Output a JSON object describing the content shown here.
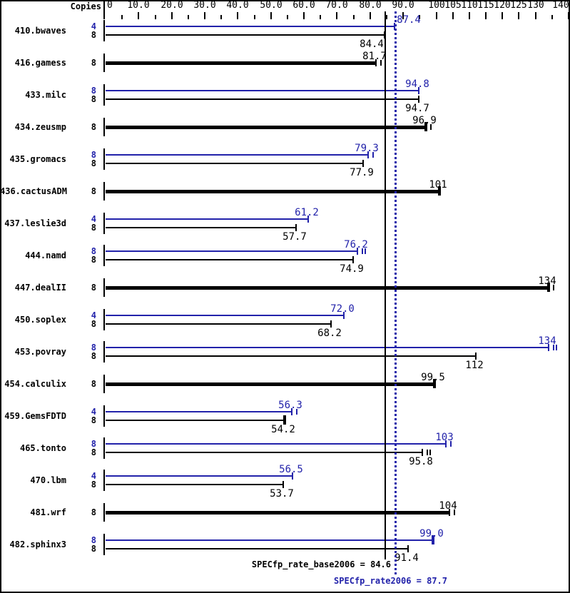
{
  "chart_data": {
    "type": "bar",
    "orientation": "horizontal",
    "copies_label": "Copies",
    "xlim": [
      0,
      140
    ],
    "grid": false,
    "colors": {
      "peak": "#2222aa",
      "base": "#000000",
      "background": "#ffffff"
    },
    "axis_ticks": [
      {
        "value": 0,
        "label": "0"
      },
      {
        "value": 5
      },
      {
        "value": 10,
        "label": "10.0"
      },
      {
        "value": 15
      },
      {
        "value": 20,
        "label": "20.0"
      },
      {
        "value": 25
      },
      {
        "value": 30,
        "label": "30.0"
      },
      {
        "value": 35
      },
      {
        "value": 40,
        "label": "40.0"
      },
      {
        "value": 45
      },
      {
        "value": 50,
        "label": "50.0"
      },
      {
        "value": 55
      },
      {
        "value": 60,
        "label": "60.0"
      },
      {
        "value": 65
      },
      {
        "value": 70,
        "label": "70.0"
      },
      {
        "value": 75
      },
      {
        "value": 80,
        "label": "80.0"
      },
      {
        "value": 85
      },
      {
        "value": 90,
        "label": "90.0"
      },
      {
        "value": 95
      },
      {
        "value": 100,
        "label": "100"
      },
      {
        "value": 105,
        "label": "105"
      },
      {
        "value": 110,
        "label": "110"
      },
      {
        "value": 115,
        "label": "115"
      },
      {
        "value": 120,
        "label": "120"
      },
      {
        "value": 125,
        "label": "125"
      },
      {
        "value": 130,
        "label": "130"
      },
      {
        "value": 135
      },
      {
        "value": 140,
        "label": "140"
      }
    ],
    "benchmarks": [
      {
        "name": "410.bwaves",
        "rows": [
          {
            "series": "peak",
            "copies": "4",
            "value": 87.4,
            "label": "87.4",
            "label_dx": 22
          },
          {
            "series": "base",
            "copies": "8",
            "value": 84.4,
            "label": "84.4",
            "label_dx": -16
          }
        ]
      },
      {
        "name": "416.gamess",
        "rows": [
          {
            "series": "base",
            "copies": "8",
            "value": 81.7,
            "label": "81.7",
            "bold": true,
            "marks": 1
          }
        ]
      },
      {
        "name": "433.milc",
        "rows": [
          {
            "series": "peak",
            "copies": "8",
            "value": 94.8,
            "label": "94.8"
          },
          {
            "series": "base",
            "copies": "8",
            "value": 94.7,
            "label": "94.7"
          }
        ]
      },
      {
        "name": "434.zeusmp",
        "rows": [
          {
            "series": "base",
            "copies": "8",
            "value": 96.9,
            "label": "96.9",
            "bold": true,
            "tick": "bold",
            "marks": 1
          }
        ]
      },
      {
        "name": "435.gromacs",
        "rows": [
          {
            "series": "peak",
            "copies": "8",
            "value": 79.3,
            "label": "79.3",
            "marks": 1
          },
          {
            "series": "base",
            "copies": "8",
            "value": 77.9,
            "label": "77.9"
          }
        ]
      },
      {
        "name": "436.cactusADM",
        "rows": [
          {
            "series": "base",
            "copies": "8",
            "value": 101,
            "label": "101",
            "bold": true,
            "tick": "bold"
          }
        ]
      },
      {
        "name": "437.leslie3d",
        "rows": [
          {
            "series": "peak",
            "copies": "4",
            "value": 61.2,
            "label": "61.2"
          },
          {
            "series": "base",
            "copies": "8",
            "value": 57.7,
            "label": "57.7"
          }
        ]
      },
      {
        "name": "444.namd",
        "rows": [
          {
            "series": "peak",
            "copies": "8",
            "value": 76.2,
            "label": "76.2",
            "marks": 2
          },
          {
            "series": "base",
            "copies": "8",
            "value": 74.9,
            "label": "74.9"
          }
        ]
      },
      {
        "name": "447.dealII",
        "rows": [
          {
            "series": "base",
            "copies": "8",
            "value": 134,
            "label": "134",
            "bold": true,
            "tick": "bold",
            "marks": 1
          }
        ]
      },
      {
        "name": "450.soplex",
        "rows": [
          {
            "series": "peak",
            "copies": "4",
            "value": 72.0,
            "label": "72.0"
          },
          {
            "series": "base",
            "copies": "8",
            "value": 68.2,
            "label": "68.2"
          }
        ]
      },
      {
        "name": "453.povray",
        "rows": [
          {
            "series": "peak",
            "copies": "8",
            "value": 134,
            "label": "134",
            "marks": 2
          },
          {
            "series": "base",
            "copies": "8",
            "value": 112,
            "label": "112"
          }
        ]
      },
      {
        "name": "454.calculix",
        "rows": [
          {
            "series": "base",
            "copies": "8",
            "value": 99.5,
            "label": "99.5",
            "bold": true,
            "tick": "bold"
          }
        ]
      },
      {
        "name": "459.GemsFDTD",
        "rows": [
          {
            "series": "peak",
            "copies": "4",
            "value": 56.3,
            "label": "56.3",
            "marks": 1
          },
          {
            "series": "base",
            "copies": "8",
            "value": 54.2,
            "label": "54.2",
            "tick": "bold"
          }
        ]
      },
      {
        "name": "465.tonto",
        "rows": [
          {
            "series": "peak",
            "copies": "8",
            "value": 103,
            "label": "103",
            "marks": 1
          },
          {
            "series": "base",
            "copies": "8",
            "value": 95.8,
            "label": "95.8",
            "marks": 2
          }
        ]
      },
      {
        "name": "470.lbm",
        "rows": [
          {
            "series": "peak",
            "copies": "4",
            "value": 56.5,
            "label": "56.5"
          },
          {
            "series": "base",
            "copies": "8",
            "value": 53.7,
            "label": "53.7"
          }
        ]
      },
      {
        "name": "481.wrf",
        "rows": [
          {
            "series": "base",
            "copies": "8",
            "value": 104,
            "label": "104",
            "bold": true,
            "marks": 1
          }
        ]
      },
      {
        "name": "482.sphinx3",
        "rows": [
          {
            "series": "peak",
            "copies": "8",
            "value": 99.0,
            "label": "99.0",
            "tick": "bold"
          },
          {
            "series": "base",
            "copies": "8",
            "value": 91.4,
            "label": "91.4"
          }
        ]
      }
    ],
    "reference_lines": [
      {
        "series": "base",
        "value": 84.6,
        "label": "SPECfp_rate_base2006 = 84.6",
        "style": "solid"
      },
      {
        "series": "peak",
        "value": 87.7,
        "label": "SPECfp_rate2006 = 87.7",
        "style": "dotted"
      }
    ]
  }
}
